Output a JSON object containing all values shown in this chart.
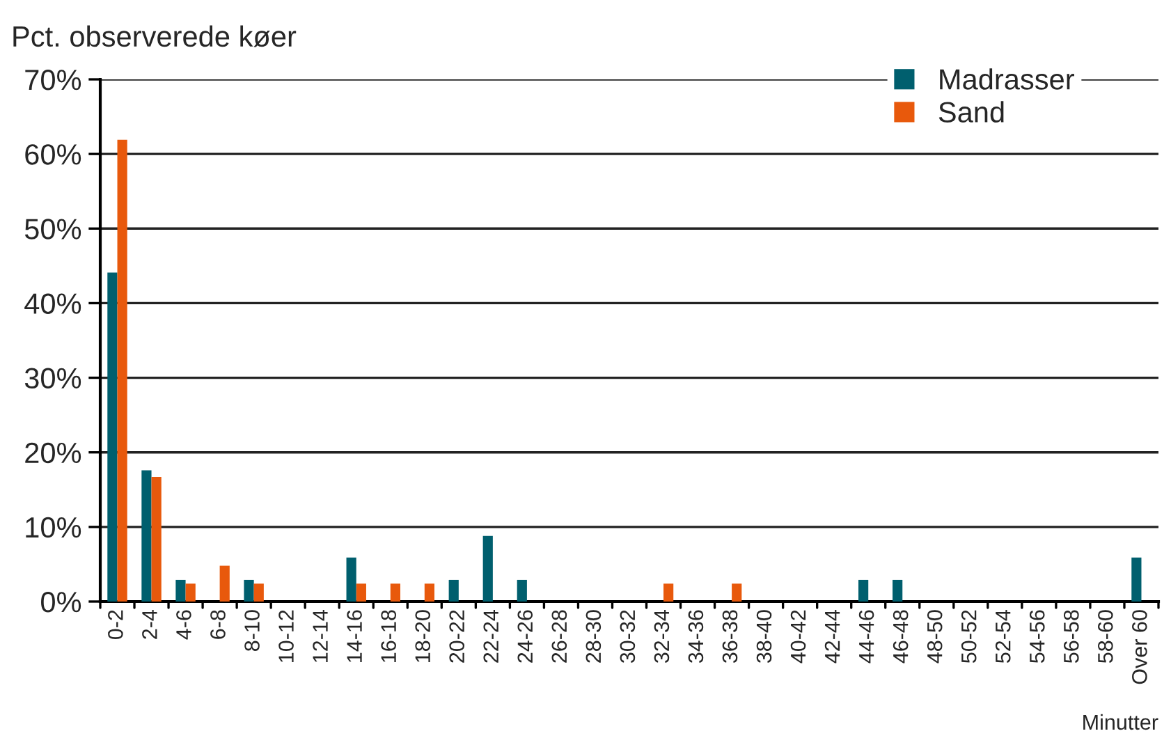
{
  "chart_data": {
    "type": "bar",
    "ylabel": "Pct. observerede køer",
    "xlabel": "Minutter",
    "categories": [
      "0-2",
      "2-4",
      "4-6",
      "6-8",
      "8-10",
      "10-12",
      "12-14",
      "14-16",
      "16-18",
      "18-20",
      "20-22",
      "22-24",
      "24-26",
      "26-28",
      "28-30",
      "30-32",
      "32-34",
      "34-36",
      "36-38",
      "38-40",
      "40-42",
      "42-44",
      "44-46",
      "46-48",
      "48-50",
      "50-52",
      "52-54",
      "54-56",
      "56-58",
      "58-60",
      "Over 60"
    ],
    "series": [
      {
        "name": "Madrasser",
        "color": "#005f6e",
        "values": [
          44.1,
          17.6,
          2.9,
          null,
          2.9,
          null,
          null,
          5.9,
          null,
          null,
          2.9,
          8.8,
          2.9,
          null,
          null,
          null,
          null,
          null,
          null,
          null,
          null,
          null,
          2.9,
          2.9,
          null,
          null,
          null,
          null,
          null,
          null,
          5.9
        ]
      },
      {
        "name": "Sand",
        "color": "#e8590c",
        "values": [
          61.9,
          16.7,
          2.4,
          4.8,
          2.4,
          null,
          null,
          2.4,
          2.4,
          2.4,
          null,
          null,
          null,
          null,
          null,
          null,
          2.4,
          null,
          2.4,
          null,
          null,
          null,
          null,
          null,
          null,
          null,
          null,
          null,
          null,
          null,
          null
        ]
      }
    ],
    "ylim": [
      0,
      70
    ],
    "yticks": [
      {
        "value": 0,
        "label": "0%"
      },
      {
        "value": 10,
        "label": "10%"
      },
      {
        "value": 20,
        "label": "20%"
      },
      {
        "value": 30,
        "label": "30%"
      },
      {
        "value": 40,
        "label": "40%"
      },
      {
        "value": 50,
        "label": "50%"
      },
      {
        "value": 60,
        "label": "60%"
      },
      {
        "value": 70,
        "label": "70%"
      }
    ],
    "grid": "y",
    "legend": "top right"
  }
}
